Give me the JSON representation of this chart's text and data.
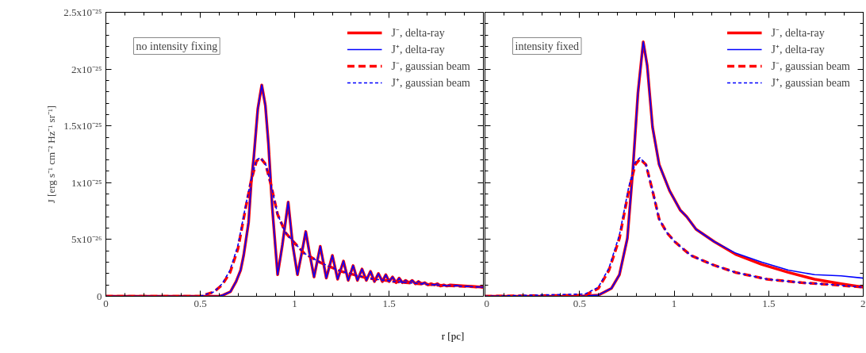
{
  "chart_data": [
    {
      "type": "line",
      "xlabel": "r [pc]",
      "ylabel": "J [erg s⁻¹ cm⁻² Hz⁻¹ sr⁻¹]",
      "annotations": [
        "no intensity fixing"
      ],
      "legend": "top right",
      "xlim": [
        0,
        2
      ],
      "ylim": [
        0,
        2.5e-25
      ],
      "xticks": [
        0,
        0.5,
        1,
        1.5
      ],
      "yticks": [
        0,
        {
          "value": 5e-26,
          "label": "5x10⁻²⁶"
        },
        {
          "value": 1e-25,
          "label": "1x10⁻²⁵"
        },
        {
          "value": 1.5e-25,
          "label": "1.5x10⁻²⁵"
        },
        {
          "value": 2e-25,
          "label": "2x10⁻²⁵"
        },
        {
          "value": 2.5e-25,
          "label": "2.5x10⁻²⁵"
        }
      ],
      "series": [
        {
          "name": "J⁻, delta-ray",
          "color": "#ff0000",
          "line_style": "solid",
          "x": [
            0,
            0.5,
            0.6,
            0.62,
            0.66,
            0.69,
            0.714,
            0.73,
            0.756,
            0.77,
            0.784,
            0.805,
            0.826,
            0.845,
            0.861,
            0.882,
            0.91,
            0.935,
            0.966,
            0.99,
            1.015,
            1.04,
            1.059,
            1.08,
            1.103,
            1.136,
            1.168,
            1.2,
            1.228,
            1.259,
            1.284,
            1.31,
            1.333,
            1.357,
            1.38,
            1.402,
            1.423,
            1.444,
            1.465,
            1.483,
            1.501,
            1.519,
            1.538,
            1.554,
            1.571,
            1.588,
            1.606,
            1.623,
            1.64,
            1.656,
            1.673,
            1.69,
            1.706,
            1.723,
            1.74,
            1.757,
            1.773,
            1.79,
            1.807,
            1.824,
            1.9,
            2
          ],
          "values": [
            0,
            0,
            0,
            1e-27,
            4e-27,
            1.3e-26,
            2.3e-26,
            3.6e-26,
            6.5e-26,
            1e-25,
            1.23e-25,
            1.65e-25,
            1.86e-25,
            1.68e-25,
            1.35e-25,
            7.7e-26,
            1.9e-26,
            4.5e-26,
            8.3e-26,
            4.5e-26,
            1.9e-26,
            4e-26,
            5.7e-26,
            3.7e-26,
            1.7e-26,
            4.4e-26,
            1.6e-26,
            3.6e-26,
            1.5e-26,
            3.1e-26,
            1.4e-26,
            2.7e-26,
            1.4e-26,
            2.4e-26,
            1.4e-26,
            2.2e-26,
            1.3e-26,
            2e-26,
            1.3e-26,
            1.9e-26,
            1.3e-26,
            1.7e-26,
            1.2e-26,
            1.6e-26,
            1.2e-26,
            1.4e-26,
            1.2e-26,
            1.4e-26,
            1.1e-26,
            1.3e-26,
            1.1e-26,
            1.2e-26,
            1e-26,
            1.1e-26,
            1e-26,
            1.1e-26,
            9e-27,
            1e-26,
            9e-27,
            1e-26,
            9e-27,
            8e-27
          ]
        },
        {
          "name": "J⁺, delta-ray",
          "color": "#0000ff",
          "line_style": "solid",
          "x": [
            0,
            0.5,
            0.6,
            0.62,
            0.66,
            0.69,
            0.714,
            0.73,
            0.756,
            0.77,
            0.784,
            0.805,
            0.826,
            0.845,
            0.861,
            0.882,
            0.91,
            0.935,
            0.966,
            0.99,
            1.015,
            1.04,
            1.059,
            1.08,
            1.103,
            1.136,
            1.168,
            1.2,
            1.228,
            1.259,
            1.284,
            1.31,
            1.333,
            1.357,
            1.38,
            1.402,
            1.423,
            1.444,
            1.465,
            1.483,
            1.501,
            1.519,
            1.538,
            1.554,
            1.571,
            1.588,
            1.606,
            1.623,
            1.64,
            1.656,
            1.673,
            1.69,
            1.706,
            1.723,
            1.74,
            1.757,
            1.773,
            1.79,
            1.807,
            1.824,
            1.9,
            2
          ],
          "values": [
            0,
            0,
            0,
            1e-27,
            4e-27,
            1.3e-26,
            2.3e-26,
            3.6e-26,
            6.5e-26,
            1e-25,
            1.23e-25,
            1.65e-25,
            1.86e-25,
            1.68e-25,
            1.35e-25,
            7.7e-26,
            1.9e-26,
            4.5e-26,
            8.3e-26,
            4.5e-26,
            1.9e-26,
            4e-26,
            5.7e-26,
            3.7e-26,
            1.7e-26,
            4.4e-26,
            1.6e-26,
            3.6e-26,
            1.5e-26,
            3.1e-26,
            1.4e-26,
            2.7e-26,
            1.4e-26,
            2.4e-26,
            1.4e-26,
            2.2e-26,
            1.3e-26,
            2e-26,
            1.3e-26,
            1.9e-26,
            1.3e-26,
            1.7e-26,
            1.2e-26,
            1.6e-26,
            1.2e-26,
            1.4e-26,
            1.2e-26,
            1.4e-26,
            1.1e-26,
            1.3e-26,
            1.1e-26,
            1.2e-26,
            1e-26,
            1.1e-26,
            1e-26,
            1.1e-26,
            9e-27,
            1e-26,
            9e-27,
            1e-26,
            9e-27,
            8e-27
          ]
        },
        {
          "name": "J⁻, gaussian beam",
          "color": "#ff0000",
          "line_style": "dashed",
          "x": [
            0,
            0.5,
            0.574,
            0.616,
            0.658,
            0.7,
            0.742,
            0.77,
            0.798,
            0.819,
            0.847,
            0.875,
            0.91,
            0.952,
            0.994,
            1.05,
            1.133,
            1.245,
            1.385,
            1.525,
            1.734,
            2
          ],
          "values": [
            0,
            0,
            4e-27,
            1e-26,
            2.1e-26,
            4.2e-26,
            7.9e-26,
            1.02e-25,
            1.19e-25,
            1.22e-25,
            1.16e-25,
            9.8e-26,
            7.2e-26,
            5.6e-26,
            4.8e-26,
            3.8e-26,
            3e-26,
            2.2e-26,
            1.6e-26,
            1.3e-26,
            1e-26,
            8e-27
          ]
        },
        {
          "name": "J⁺, gaussian beam",
          "color": "#0000ff",
          "line_style": "dashed",
          "x": [
            0,
            0.5,
            0.574,
            0.616,
            0.658,
            0.7,
            0.742,
            0.77,
            0.798,
            0.819,
            0.847,
            0.875,
            0.91,
            0.952,
            0.994,
            1.05,
            1.133,
            1.245,
            1.385,
            1.525,
            1.734,
            2
          ],
          "values": [
            0,
            0,
            4e-27,
            1.1e-26,
            2.3e-26,
            4.5e-26,
            8.1e-26,
            1.03e-25,
            1.2e-25,
            1.22e-25,
            1.16e-25,
            9.8e-26,
            7.2e-26,
            5.6e-26,
            4.8e-26,
            3.8e-26,
            3e-26,
            2.2e-26,
            1.6e-26,
            1.3e-26,
            1e-26,
            8e-27
          ]
        }
      ]
    },
    {
      "type": "line",
      "annotations": [
        "intensity fixed"
      ],
      "legend": "top right",
      "tick_labels": "x",
      "xlim": [
        0,
        2
      ],
      "ylim": [
        0,
        2.5e-25
      ],
      "xticks": [
        0,
        0.5,
        1,
        1.5,
        2
      ],
      "yticks": [
        {
          "value": 0,
          "label": null
        },
        {
          "value": 5e-26,
          "label": null
        },
        {
          "value": 1e-25,
          "label": null
        },
        {
          "value": 1.5e-25,
          "label": null
        },
        {
          "value": 2e-25,
          "label": null
        },
        {
          "value": 2.5e-25,
          "label": null
        }
      ],
      "series": [
        {
          "name": "J⁻, delta-ray",
          "color": "#ff0000",
          "line_style": "solid",
          "x": [
            0,
            0.5,
            0.6,
            0.669,
            0.711,
            0.753,
            0.781,
            0.809,
            0.837,
            0.858,
            0.886,
            0.921,
            0.976,
            1.032,
            1.067,
            1.116,
            1.213,
            1.325,
            1.464,
            1.604,
            1.743,
            1.883,
            2
          ],
          "values": [
            0,
            0,
            1e-27,
            7e-27,
            1.9e-26,
            5.1e-26,
            1.09e-25,
            1.79e-25,
            2.24e-25,
            2.03e-25,
            1.49e-25,
            1.16e-25,
            9.3e-26,
            7.6e-26,
            7e-26,
            5.9e-26,
            4.8e-26,
            3.7e-26,
            2.8e-26,
            2.1e-26,
            1.5e-26,
            1.1e-26,
            8e-27
          ]
        },
        {
          "name": "J⁺, delta-ray",
          "color": "#0000ff",
          "line_style": "solid",
          "x": [
            0,
            0.5,
            0.6,
            0.669,
            0.711,
            0.753,
            0.781,
            0.809,
            0.837,
            0.858,
            0.886,
            0.921,
            0.976,
            1.032,
            1.067,
            1.116,
            1.213,
            1.325,
            1.464,
            1.604,
            1.743,
            1.883,
            2
          ],
          "values": [
            0,
            0,
            1e-27,
            7e-27,
            1.9e-26,
            5.1e-26,
            1.09e-25,
            1.79e-25,
            2.24e-25,
            2.03e-25,
            1.49e-25,
            1.16e-25,
            9.3e-26,
            7.6e-26,
            7e-26,
            5.9e-26,
            4.8e-26,
            3.8e-26,
            3e-26,
            2.3e-26,
            1.9e-26,
            1.8e-26,
            1.6e-26
          ]
        },
        {
          "name": "J⁻, gaussian beam",
          "color": "#ff0000",
          "line_style": "dashed",
          "x": [
            0,
            0.53,
            0.6,
            0.656,
            0.711,
            0.76,
            0.795,
            0.82,
            0.851,
            0.886,
            0.921,
            0.962,
            1.004,
            1.088,
            1.2,
            1.325,
            1.492,
            1.674,
            1.855,
            2
          ],
          "values": [
            0,
            1e-27,
            7e-27,
            2.3e-26,
            5.1e-26,
            9.3e-26,
            1.16e-25,
            1.21e-25,
            1.16e-25,
            9.3e-26,
            6.8e-26,
            5.6e-26,
            4.8e-26,
            3.6e-26,
            2.8e-26,
            2.1e-26,
            1.5e-26,
            1.2e-26,
            1e-26,
            8e-27
          ]
        },
        {
          "name": "J⁺, gaussian beam",
          "color": "#0000ff",
          "line_style": "dashed",
          "x": [
            0,
            0.53,
            0.6,
            0.656,
            0.711,
            0.76,
            0.795,
            0.82,
            0.851,
            0.886,
            0.921,
            0.962,
            1.004,
            1.088,
            1.2,
            1.325,
            1.492,
            1.674,
            1.855,
            2
          ],
          "values": [
            0,
            2e-27,
            8e-27,
            2.5e-26,
            5.4e-26,
            9.6e-26,
            1.18e-25,
            1.22e-25,
            1.16e-25,
            9.3e-26,
            6.8e-26,
            5.6e-26,
            4.8e-26,
            3.6e-26,
            2.8e-26,
            2.1e-26,
            1.5e-26,
            1.2e-26,
            1e-26,
            8e-27
          ]
        }
      ]
    }
  ]
}
